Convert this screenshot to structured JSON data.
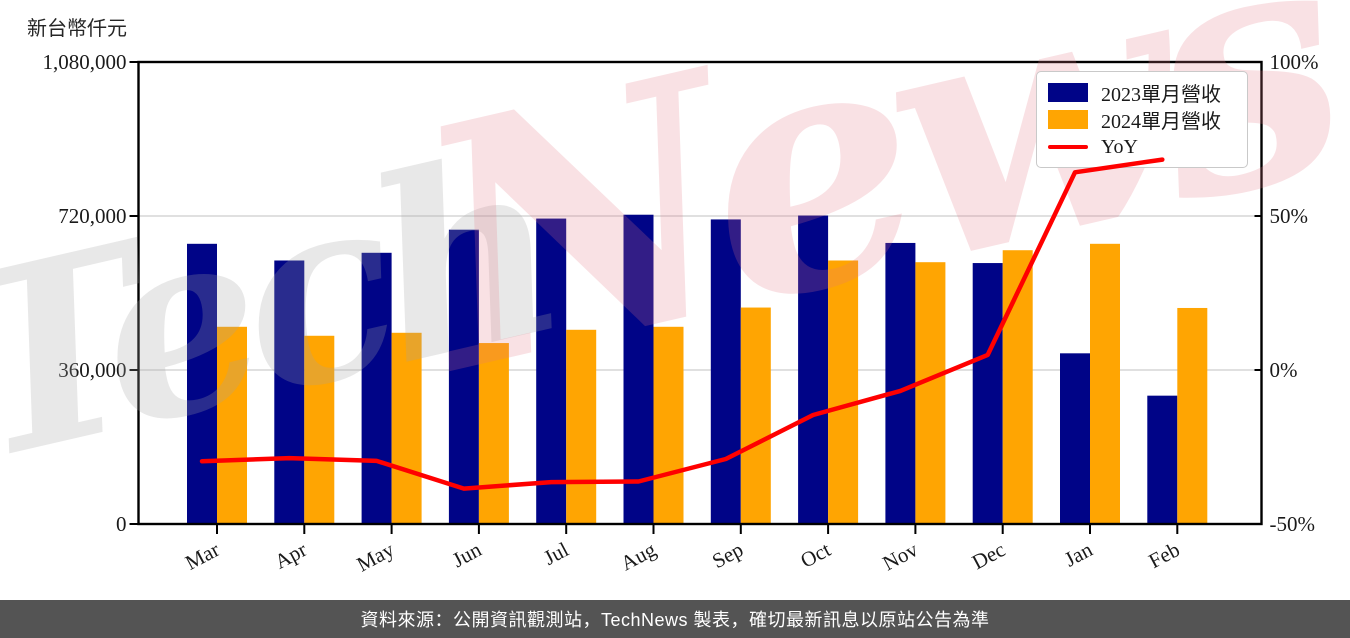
{
  "header": {
    "unit_label": "新台幣仟元"
  },
  "watermark": {
    "part1": "Tech",
    "part2": "News",
    "part1_color": "rgba(165,165,165,0.25)",
    "part2_color": "rgba(226,118,134,0.22)"
  },
  "footer": {
    "text": "資料來源：公開資訊觀測站，TechNews 製表，確切最新訊息以原站公告為準",
    "bg_color": "#545454"
  },
  "chart_data": {
    "type": "bar+line",
    "title": "",
    "categories": [
      "Mar",
      "Apr",
      "May",
      "Jun",
      "Jul",
      "Aug",
      "Sep",
      "Oct",
      "Nov",
      "Dec",
      "Jan",
      "Feb"
    ],
    "series": [
      {
        "name": "2023單月營收",
        "type": "bar",
        "axis": "left",
        "color": "#000487",
        "values": [
          655000,
          616000,
          634000,
          688000,
          714000,
          723000,
          712000,
          721000,
          657000,
          610000,
          399000,
          300000
        ]
      },
      {
        "name": "2024單月營收",
        "type": "bar",
        "axis": "left",
        "color": "#FFA502",
        "values": [
          461000,
          440000,
          447000,
          423000,
          454000,
          461000,
          506000,
          616000,
          612000,
          640000,
          655000,
          505000
        ]
      },
      {
        "name": "YoY",
        "type": "line",
        "axis": "right",
        "color": "#FF0000",
        "values": [
          -29.6,
          -28.6,
          -29.5,
          -38.5,
          -36.4,
          -36.2,
          -28.9,
          -14.6,
          -6.8,
          4.9,
          64.2,
          68.3
        ]
      }
    ],
    "left_axis": {
      "label": "新台幣仟元",
      "range": [
        0,
        1080000
      ],
      "ticks": [
        0,
        360000,
        720000,
        1080000
      ],
      "tick_labels": [
        "0",
        "360,000",
        "720,000",
        "1,080,000"
      ]
    },
    "right_axis": {
      "label": "",
      "range": [
        -50,
        100
      ],
      "ticks": [
        -50,
        0,
        50,
        100
      ],
      "tick_labels": [
        "-50%",
        "0%",
        "50%",
        "100%"
      ]
    },
    "grid": "horizontal",
    "grid_color": "#DCDCDC",
    "frame_color": "#000000",
    "tick_label_color": "#1a1a1a",
    "legend_position": "top-right"
  }
}
